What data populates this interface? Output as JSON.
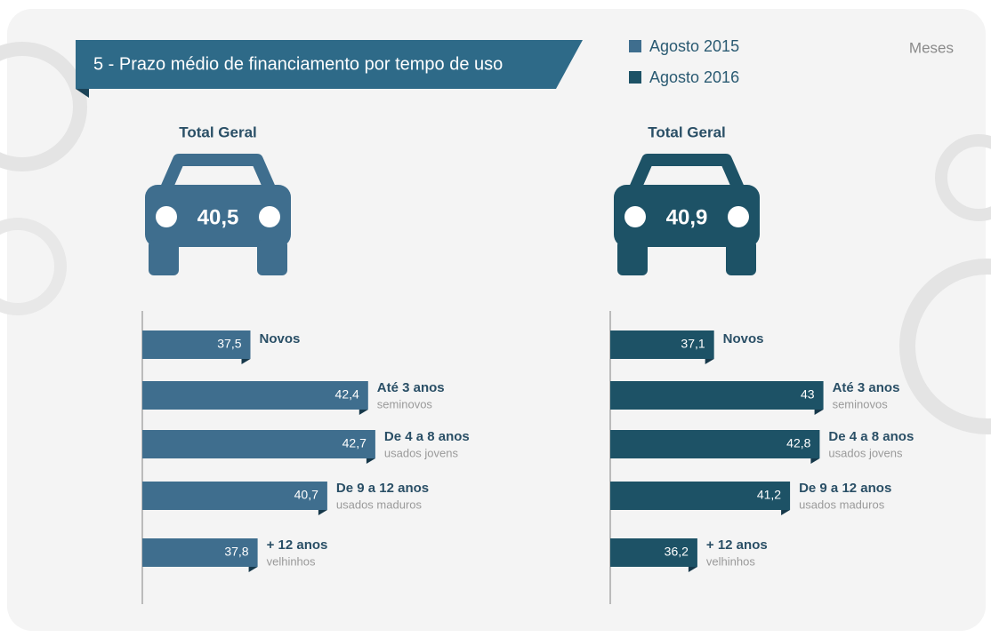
{
  "header": {
    "title": "5 - Prazo médio de financiamento por tempo de uso",
    "unit": "Meses"
  },
  "chart_data": [
    {
      "type": "bar",
      "orientation": "horizontal",
      "total_label": "Total Geral",
      "total": 40.5,
      "total_value_label": "40,5",
      "categories": [
        "Novos",
        "Até 3 anos",
        "De 4 a 8 anos",
        "De 9 a 12 anos",
        "+ 12 anos"
      ],
      "category_notes": [
        null,
        "seminovos",
        "usados jovens",
        "usados maduros",
        "velhinhos"
      ],
      "xlim": [
        33,
        43
      ],
      "series": [
        {
          "name": "Agosto 2015",
          "color": "#3f6e8e",
          "values": [
            37.5,
            42.4,
            42.7,
            40.7,
            37.8
          ],
          "value_labels": [
            "37,5",
            "42,4",
            "42,7",
            "40,7",
            "37,8"
          ]
        }
      ]
    },
    {
      "type": "bar",
      "orientation": "horizontal",
      "total_label": "Total Geral",
      "total": 40.9,
      "total_value_label": "40,9",
      "categories": [
        "Novos",
        "Até 3 anos",
        "De 4 a 8 anos",
        "De 9 a 12 anos",
        "+ 12 anos"
      ],
      "category_notes": [
        null,
        "seminovos",
        "usados jovens",
        "usados maduros",
        "velhinhos"
      ],
      "xlim": [
        31.5,
        43.5
      ],
      "series": [
        {
          "name": "Agosto 2016",
          "color": "#1d5266",
          "values": [
            37.1,
            43,
            42.8,
            41.2,
            36.2
          ],
          "value_labels": [
            "37,1",
            "43",
            "42,8",
            "41,2",
            "36,2"
          ]
        }
      ]
    }
  ]
}
